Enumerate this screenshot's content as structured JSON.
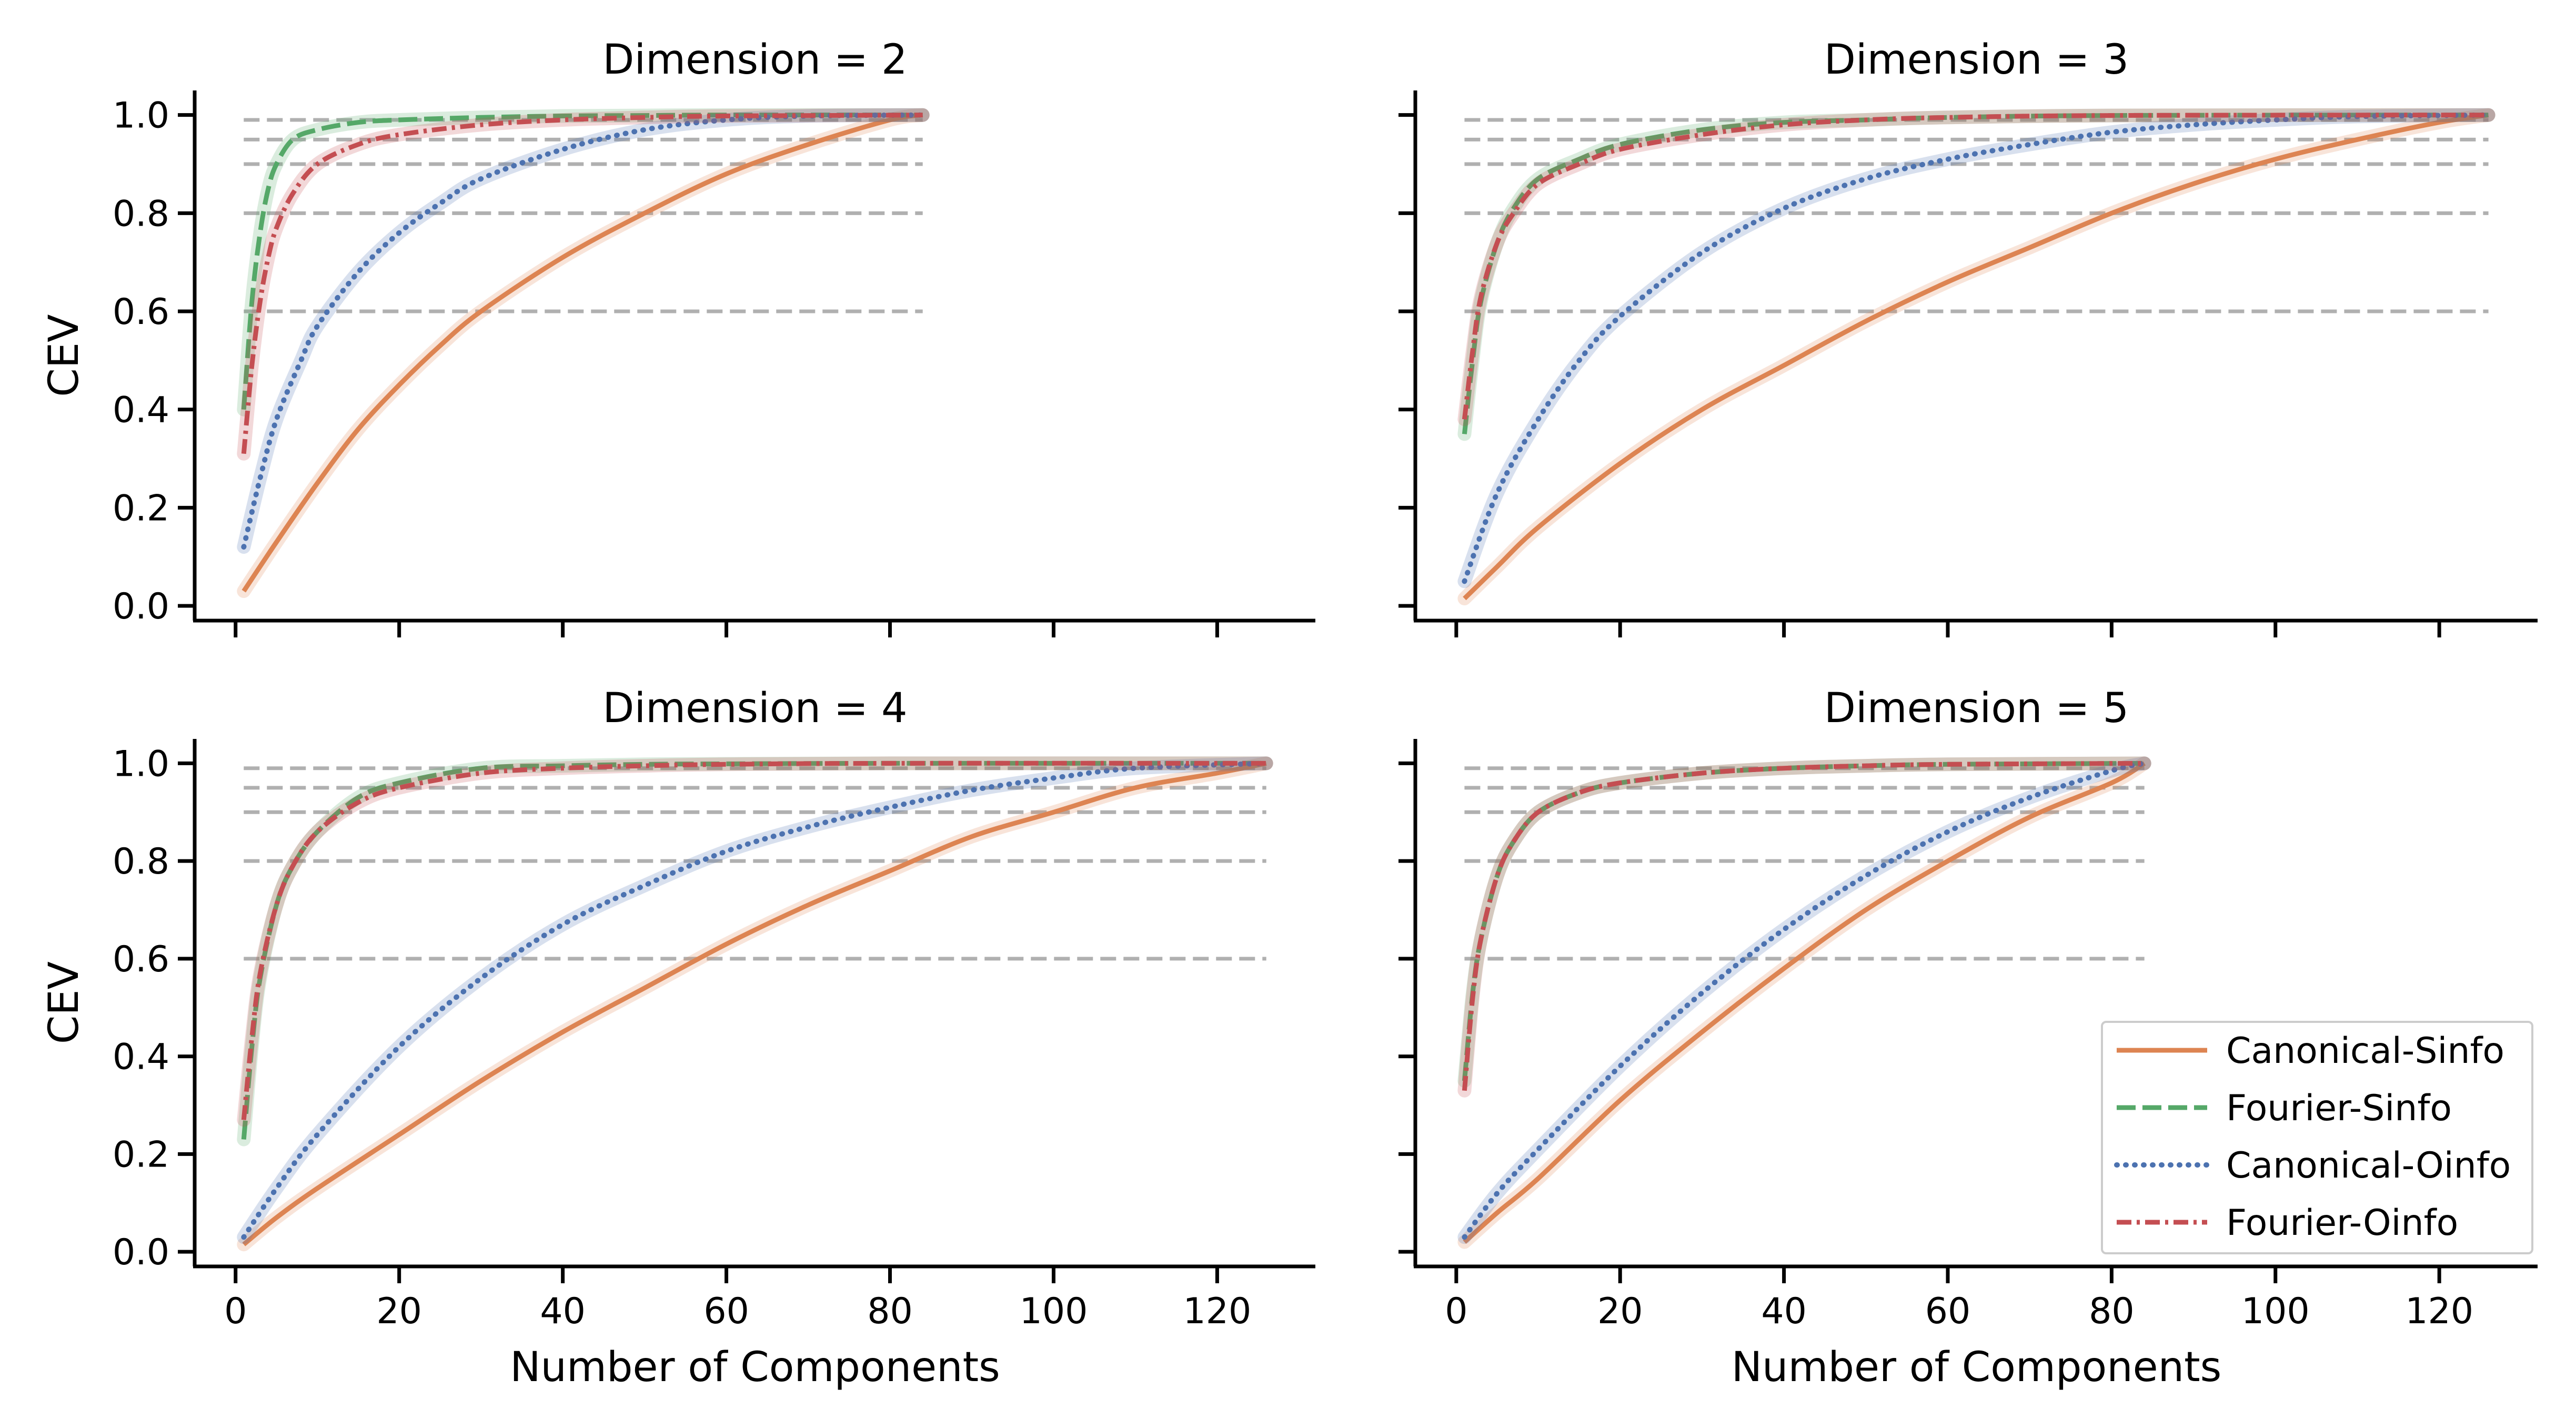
{
  "chart_data": {
    "type": "line",
    "figure_layout": "2x2 grid, shared x and y axes",
    "xlabel": "Number of Components",
    "ylabel": "CEV",
    "xlim": [
      -5,
      132
    ],
    "ylim": [
      -0.03,
      1.05
    ],
    "xticks": [
      0,
      20,
      40,
      60,
      80,
      100,
      120
    ],
    "yticks": [
      0.0,
      0.2,
      0.4,
      0.6,
      0.8,
      1.0
    ],
    "tick_labels_x": [
      "0",
      "20",
      "40",
      "60",
      "80",
      "100",
      "120"
    ],
    "tick_labels_y": [
      "0.0",
      "0.2",
      "0.4",
      "0.6",
      "0.8",
      "1.0"
    ],
    "reference_lines": [
      0.6,
      0.8,
      0.9,
      0.95,
      0.99
    ],
    "reference_line_color": "#b0b0b0",
    "legend": {
      "placement": "lower-right of bottom-right panel",
      "entries": [
        {
          "label": "Canonical-Sinfo",
          "color": "#dd8452",
          "style": "solid"
        },
        {
          "label": "Fourier-Sinfo",
          "color": "#55a868",
          "style": "dashed"
        },
        {
          "label": "Canonical-Oinfo",
          "color": "#4c72b0",
          "style": "dotted"
        },
        {
          "label": "Fourier-Oinfo",
          "color": "#c44e52",
          "style": "dashdot"
        }
      ]
    },
    "panels": [
      {
        "title": "Dimension = 2",
        "n_max": 84,
        "series": [
          {
            "name": "Canonical-Sinfo",
            "x": [
              1,
              5,
              10,
              15,
              20,
              25,
              30,
              40,
              50,
              60,
              70,
              80,
              84
            ],
            "y": [
              0.03,
              0.13,
              0.25,
              0.36,
              0.45,
              0.53,
              0.6,
              0.71,
              0.8,
              0.88,
              0.94,
              0.99,
              1.0
            ]
          },
          {
            "name": "Fourier-Sinfo",
            "x": [
              1,
              2,
              3,
              4,
              5,
              7,
              10,
              15,
              20,
              30,
              40,
              50,
              60,
              84
            ],
            "y": [
              0.4,
              0.62,
              0.76,
              0.85,
              0.9,
              0.95,
              0.97,
              0.985,
              0.99,
              0.995,
              0.998,
              0.999,
              1.0,
              1.0
            ]
          },
          {
            "name": "Canonical-Oinfo",
            "x": [
              1,
              3,
              5,
              8,
              10,
              15,
              20,
              25,
              30,
              40,
              50,
              60,
              70,
              84
            ],
            "y": [
              0.12,
              0.26,
              0.38,
              0.5,
              0.57,
              0.68,
              0.76,
              0.82,
              0.87,
              0.93,
              0.97,
              0.99,
              0.998,
              1.0
            ]
          },
          {
            "name": "Fourier-Oinfo",
            "x": [
              1,
              2,
              3,
              4,
              5,
              7,
              10,
              15,
              20,
              30,
              40,
              50,
              60,
              84
            ],
            "y": [
              0.31,
              0.49,
              0.62,
              0.71,
              0.77,
              0.84,
              0.9,
              0.94,
              0.96,
              0.98,
              0.99,
              0.995,
              0.998,
              1.0
            ]
          }
        ]
      },
      {
        "title": "Dimension = 3",
        "n_max": 126,
        "series": [
          {
            "name": "Canonical-Sinfo",
            "x": [
              1,
              5,
              10,
              20,
              30,
              40,
              50,
              60,
              70,
              80,
              90,
              100,
              110,
              120,
              126
            ],
            "y": [
              0.015,
              0.08,
              0.16,
              0.29,
              0.4,
              0.49,
              0.58,
              0.66,
              0.73,
              0.8,
              0.86,
              0.91,
              0.95,
              0.985,
              1.0
            ]
          },
          {
            "name": "Fourier-Sinfo",
            "x": [
              1,
              2,
              3,
              5,
              7,
              10,
              15,
              20,
              30,
              40,
              50,
              60,
              80,
              126
            ],
            "y": [
              0.35,
              0.5,
              0.62,
              0.74,
              0.81,
              0.87,
              0.91,
              0.94,
              0.97,
              0.985,
              0.99,
              0.995,
              0.999,
              1.0
            ]
          },
          {
            "name": "Canonical-Oinfo",
            "x": [
              1,
              5,
              10,
              15,
              20,
              30,
              40,
              50,
              60,
              70,
              80,
              90,
              100,
              110,
              126
            ],
            "y": [
              0.05,
              0.23,
              0.38,
              0.5,
              0.59,
              0.72,
              0.81,
              0.87,
              0.91,
              0.94,
              0.965,
              0.98,
              0.99,
              0.997,
              1.0
            ]
          },
          {
            "name": "Fourier-Oinfo",
            "x": [
              1,
              2,
              3,
              5,
              7,
              10,
              15,
              20,
              30,
              40,
              50,
              60,
              80,
              126
            ],
            "y": [
              0.38,
              0.52,
              0.63,
              0.74,
              0.8,
              0.86,
              0.9,
              0.93,
              0.96,
              0.98,
              0.99,
              0.995,
              0.999,
              1.0
            ]
          }
        ]
      },
      {
        "title": "Dimension = 4",
        "n_max": 126,
        "series": [
          {
            "name": "Canonical-Sinfo",
            "x": [
              1,
              5,
              10,
              20,
              30,
              40,
              50,
              60,
              70,
              80,
              90,
              100,
              110,
              120,
              126
            ],
            "y": [
              0.015,
              0.07,
              0.13,
              0.24,
              0.35,
              0.45,
              0.54,
              0.63,
              0.71,
              0.78,
              0.85,
              0.9,
              0.95,
              0.98,
              1.0
            ]
          },
          {
            "name": "Fourier-Sinfo",
            "x": [
              1,
              2,
              3,
              5,
              7,
              10,
              15,
              20,
              30,
              40,
              50,
              60,
              80,
              126
            ],
            "y": [
              0.23,
              0.42,
              0.56,
              0.71,
              0.79,
              0.86,
              0.93,
              0.96,
              0.99,
              0.995,
              0.998,
              0.999,
              1.0,
              1.0
            ]
          },
          {
            "name": "Canonical-Oinfo",
            "x": [
              1,
              5,
              10,
              20,
              30,
              40,
              50,
              60,
              70,
              80,
              90,
              100,
              110,
              126
            ],
            "y": [
              0.03,
              0.13,
              0.24,
              0.42,
              0.56,
              0.67,
              0.75,
              0.82,
              0.87,
              0.91,
              0.945,
              0.97,
              0.99,
              1.0
            ]
          },
          {
            "name": "Fourier-Oinfo",
            "x": [
              1,
              2,
              3,
              5,
              7,
              10,
              15,
              20,
              30,
              40,
              50,
              60,
              80,
              126
            ],
            "y": [
              0.27,
              0.44,
              0.57,
              0.71,
              0.79,
              0.86,
              0.92,
              0.95,
              0.98,
              0.99,
              0.995,
              0.998,
              1.0,
              1.0
            ]
          }
        ]
      },
      {
        "title": "Dimension = 5",
        "n_max": 84,
        "series": [
          {
            "name": "Canonical-Sinfo",
            "x": [
              1,
              5,
              10,
              20,
              30,
              40,
              50,
              60,
              70,
              80,
              84
            ],
            "y": [
              0.02,
              0.08,
              0.15,
              0.31,
              0.45,
              0.58,
              0.7,
              0.8,
              0.89,
              0.96,
              1.0
            ]
          },
          {
            "name": "Fourier-Sinfo",
            "x": [
              1,
              2,
              3,
              5,
              7,
              10,
              15,
              20,
              30,
              40,
              50,
              60,
              84
            ],
            "y": [
              0.35,
              0.53,
              0.64,
              0.77,
              0.84,
              0.9,
              0.94,
              0.96,
              0.98,
              0.99,
              0.995,
              0.998,
              1.0
            ]
          },
          {
            "name": "Canonical-Oinfo",
            "x": [
              1,
              5,
              10,
              20,
              30,
              40,
              50,
              60,
              70,
              80,
              84
            ],
            "y": [
              0.03,
              0.12,
              0.21,
              0.38,
              0.53,
              0.66,
              0.77,
              0.86,
              0.93,
              0.985,
              1.0
            ]
          },
          {
            "name": "Fourier-Oinfo",
            "x": [
              1,
              2,
              3,
              5,
              7,
              10,
              15,
              20,
              30,
              40,
              50,
              60,
              84
            ],
            "y": [
              0.33,
              0.52,
              0.64,
              0.77,
              0.84,
              0.9,
              0.94,
              0.96,
              0.98,
              0.99,
              0.995,
              0.998,
              1.0
            ]
          }
        ]
      }
    ]
  }
}
